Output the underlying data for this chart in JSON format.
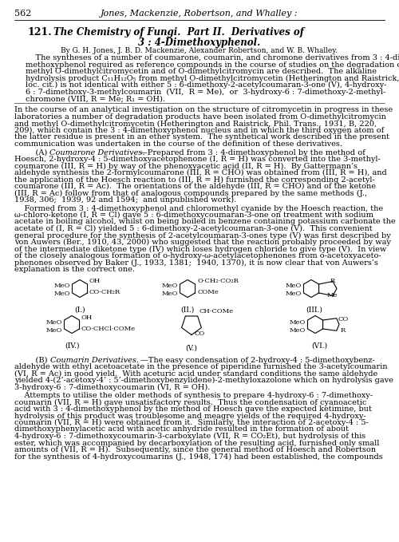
{
  "page_number": "562",
  "header_authors": "Jones, Mackenzie, Robertson, and Whalley :",
  "title_number": "121.",
  "title_text": "The Chemistry of Fungi.  Part II.  Derivatives of\n3 : 4-Dimethoxyphenol.",
  "byline": "By G. H. Jones, J. B. D. Mackenzie, Alexander Robertson, and W. B. Whalley.",
  "bg_color": "#ffffff",
  "text_color": "#000000"
}
